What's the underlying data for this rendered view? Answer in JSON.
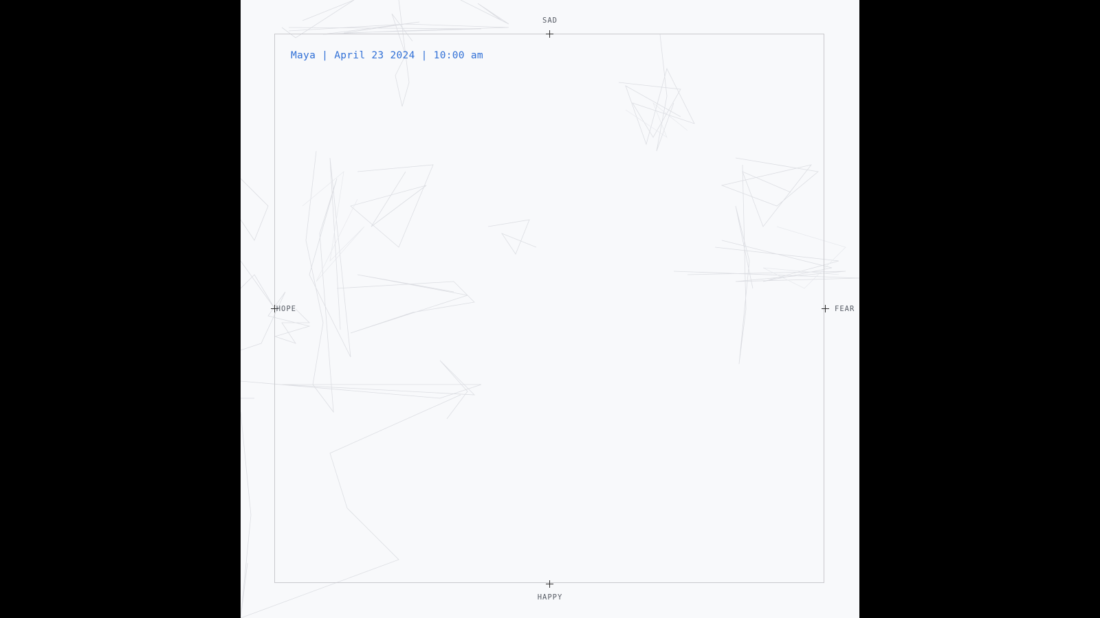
{
  "session": {
    "label": "Maya | April 23 2024 | 10:00 am",
    "color": "#2f6fd6"
  },
  "axes": {
    "top": "SAD",
    "bottom": "HAPPY",
    "left": "HOPE",
    "right": "FEAR"
  },
  "icons": {
    "axis_marker": "plus-crosshair"
  }
}
